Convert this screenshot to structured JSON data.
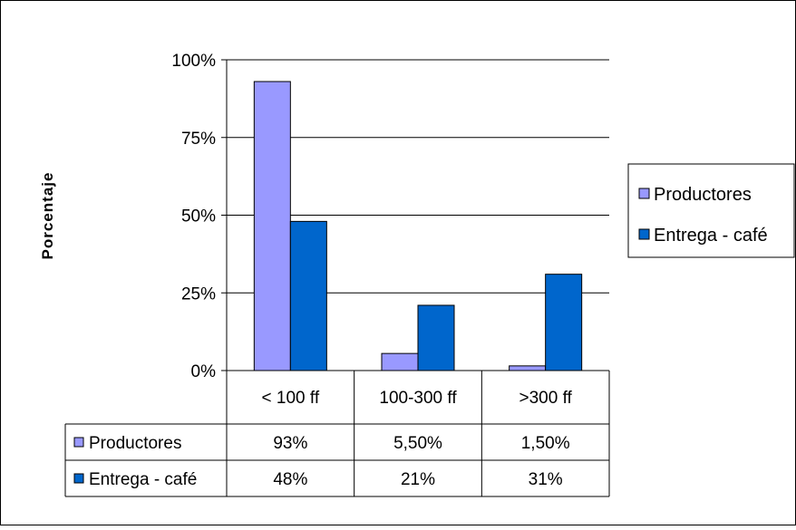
{
  "chart_data": {
    "type": "bar",
    "ylabel": "Porcentaje",
    "ylim": [
      0,
      100
    ],
    "yticks": [
      "0%",
      "25%",
      "50%",
      "75%",
      "100%"
    ],
    "ytick_values": [
      0,
      25,
      50,
      75,
      100
    ],
    "grid": true,
    "legend_position": "right",
    "categories": [
      "< 100 ff",
      "100-300 ff",
      ">300 ff"
    ],
    "series": [
      {
        "name": "Productores",
        "values": [
          93,
          5.5,
          1.5
        ],
        "labels": [
          "93%",
          "5,50%",
          "1,50%"
        ],
        "color": "#9999ff"
      },
      {
        "name": "Entrega - café",
        "values": [
          48,
          21,
          31
        ],
        "labels": [
          "48%",
          "21%",
          "31%"
        ],
        "color": "#0066cc"
      }
    ]
  }
}
